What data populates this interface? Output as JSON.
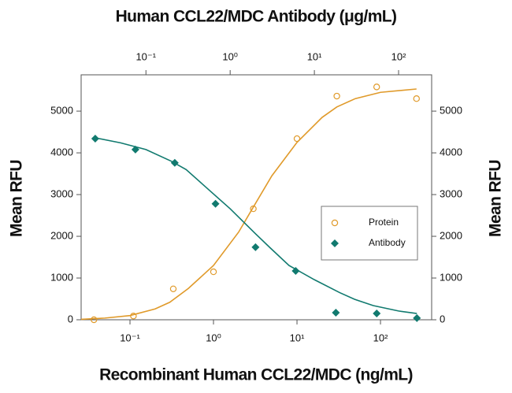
{
  "chart_data": {
    "type": "scatter",
    "x2label": "Human CCL22/MDC Antibody (μg/mL)",
    "xlabel": "Recombinant Human CCL22/MDC (ng/mL)",
    "ylabel": "Mean RFU",
    "y2label": "Mean RFU",
    "xscale": "log",
    "xlim": [
      0.026,
      410
    ],
    "xticks": [
      {
        "value": 0.1,
        "label": "10⁻¹"
      },
      {
        "value": 1,
        "label": "10⁰"
      },
      {
        "value": 10,
        "label": "10¹"
      },
      {
        "value": 100,
        "label": "10²"
      }
    ],
    "x2lim": [
      0.017,
      247
    ],
    "x2ticks": [
      {
        "value": 0.1,
        "label": "10⁻¹"
      },
      {
        "value": 1,
        "label": "10⁰"
      },
      {
        "value": 10,
        "label": "10¹"
      },
      {
        "value": 100,
        "label": "10²"
      }
    ],
    "ylim": [
      0,
      5870
    ],
    "yticks": [
      0,
      1000,
      2000,
      3000,
      4000,
      5000
    ],
    "y2lim": [
      0,
      5870
    ],
    "y2ticks": [
      0,
      1000,
      2000,
      3000,
      4000,
      5000
    ],
    "legend": "right",
    "series": [
      {
        "name": "Protein",
        "color": "#e09a2a",
        "marker": "circle",
        "x": [
          0.037,
          0.11,
          0.33,
          1.0,
          3.0,
          10,
          30,
          90,
          270
        ],
        "values": [
          0,
          90,
          740,
          1150,
          2660,
          4340,
          5360,
          5580,
          5300
        ],
        "fit": {
          "x": [
            0.026,
            0.05,
            0.1,
            0.2,
            0.3,
            0.5,
            1,
            2,
            3,
            5,
            10,
            20,
            30,
            50,
            100,
            270
          ],
          "values": [
            10,
            40,
            100,
            260,
            420,
            750,
            1300,
            2100,
            2700,
            3450,
            4250,
            4850,
            5100,
            5300,
            5450,
            5530
          ]
        }
      },
      {
        "name": "Antibody",
        "color": "#117a6f",
        "marker": "diamond",
        "axis": "y2",
        "xaxis": "x2",
        "x": [
          0.025,
          0.075,
          0.22,
          0.67,
          2,
          6,
          18,
          55,
          165
        ],
        "values": [
          4340,
          4080,
          3760,
          2780,
          1740,
          1170,
          170,
          150,
          40
        ],
        "fit": {
          "x": [
            0.025,
            0.05,
            0.1,
            0.2,
            0.3,
            0.5,
            1,
            2,
            3,
            5,
            10,
            20,
            30,
            50,
            100,
            165
          ],
          "values": [
            4360,
            4240,
            4080,
            3800,
            3600,
            3200,
            2660,
            2060,
            1720,
            1300,
            960,
            650,
            490,
            340,
            210,
            150
          ]
        }
      }
    ]
  }
}
